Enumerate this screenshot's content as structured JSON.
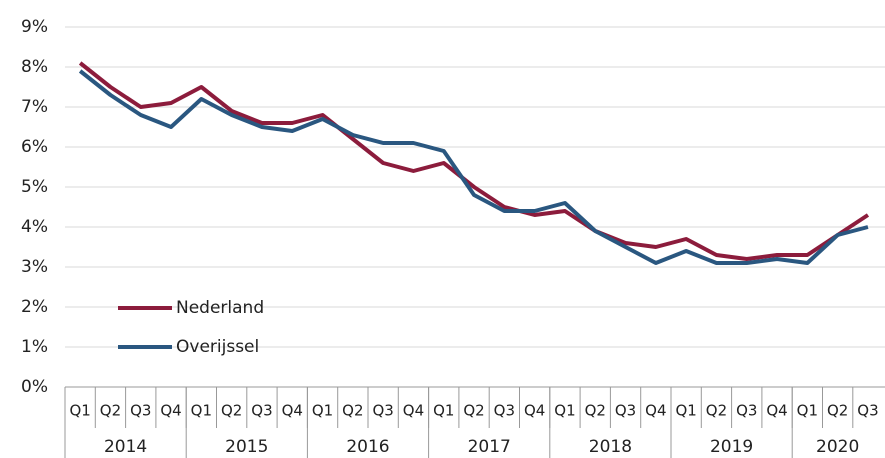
{
  "chart_data": {
    "type": "line",
    "categories": [
      "Q1",
      "Q2",
      "Q3",
      "Q4",
      "Q1",
      "Q2",
      "Q3",
      "Q4",
      "Q1",
      "Q2",
      "Q3",
      "Q4",
      "Q1",
      "Q2",
      "Q3",
      "Q4",
      "Q1",
      "Q2",
      "Q3",
      "Q4",
      "Q1",
      "Q2",
      "Q3",
      "Q4",
      "Q1",
      "Q2",
      "Q3"
    ],
    "groups": [
      {
        "name": "2014",
        "count": 4
      },
      {
        "name": "2015",
        "count": 4
      },
      {
        "name": "2016",
        "count": 4
      },
      {
        "name": "2017",
        "count": 4
      },
      {
        "name": "2018",
        "count": 4
      },
      {
        "name": "2019",
        "count": 4
      },
      {
        "name": "2020",
        "count": 3
      }
    ],
    "series": [
      {
        "name": "Nederland",
        "color": "#8c1c3c",
        "values": [
          8.1,
          7.5,
          7.0,
          7.1,
          7.5,
          6.9,
          6.6,
          6.6,
          6.8,
          6.2,
          5.6,
          5.4,
          5.6,
          5.0,
          4.5,
          4.3,
          4.4,
          3.9,
          3.6,
          3.5,
          3.7,
          3.3,
          3.2,
          3.3,
          3.3,
          3.8,
          4.3
        ]
      },
      {
        "name": "Overijssel",
        "color": "#2a5780",
        "values": [
          7.9,
          7.3,
          6.8,
          6.5,
          7.2,
          6.8,
          6.5,
          6.4,
          6.7,
          6.3,
          6.1,
          6.1,
          5.9,
          4.8,
          4.4,
          4.4,
          4.6,
          3.9,
          3.5,
          3.1,
          3.4,
          3.1,
          3.1,
          3.2,
          3.1,
          3.8,
          4.0
        ]
      }
    ],
    "ylim": [
      0,
      9
    ],
    "yticks": [
      {
        "value": 0,
        "label": "0%"
      },
      {
        "value": 1,
        "label": "1%"
      },
      {
        "value": 2,
        "label": "2%"
      },
      {
        "value": 3,
        "label": "3%"
      },
      {
        "value": 4,
        "label": "4%"
      },
      {
        "value": 5,
        "label": "5%"
      },
      {
        "value": 6,
        "label": "6%"
      },
      {
        "value": 7,
        "label": "7%"
      },
      {
        "value": 8,
        "label": "8%"
      },
      {
        "value": 9,
        "label": "9%"
      }
    ],
    "grid": true,
    "legend": "lower-left"
  }
}
